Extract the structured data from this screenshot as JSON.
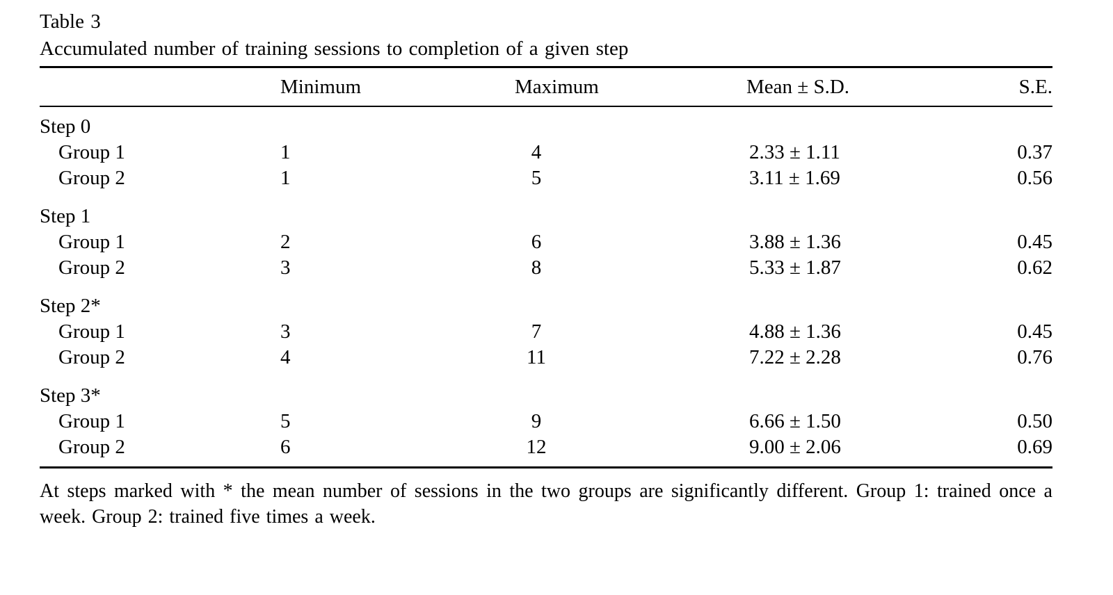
{
  "title": "Table 3",
  "caption": "Accumulated number of training sessions to completion of a given step",
  "columns": {
    "label": "",
    "minimum": "Minimum",
    "maximum": "Maximum",
    "mean_sd": "Mean ± S.D.",
    "se": "S.E."
  },
  "sections": [
    {
      "label": "Step 0",
      "rows": [
        {
          "label": "Group 1",
          "minimum": "1",
          "maximum": "4",
          "mean_sd": "2.33 ± 1.11",
          "se": "0.37"
        },
        {
          "label": "Group 2",
          "minimum": "1",
          "maximum": "5",
          "mean_sd": "3.11 ± 1.69",
          "se": "0.56"
        }
      ]
    },
    {
      "label": "Step 1",
      "rows": [
        {
          "label": "Group 1",
          "minimum": "2",
          "maximum": "6",
          "mean_sd": "3.88 ± 1.36",
          "se": "0.45"
        },
        {
          "label": "Group 2",
          "minimum": "3",
          "maximum": "8",
          "mean_sd": "5.33 ± 1.87",
          "se": "0.62"
        }
      ]
    },
    {
      "label": "Step 2*",
      "rows": [
        {
          "label": "Group 1",
          "minimum": "3",
          "maximum": "7",
          "mean_sd": "4.88 ± 1.36",
          "se": "0.45"
        },
        {
          "label": "Group 2",
          "minimum": "4",
          "maximum": "11",
          "mean_sd": "7.22 ± 2.28",
          "se": "0.76"
        }
      ]
    },
    {
      "label": "Step 3*",
      "rows": [
        {
          "label": "Group 1",
          "minimum": "5",
          "maximum": "9",
          "mean_sd": "6.66 ± 1.50",
          "se": "0.50"
        },
        {
          "label": "Group 2",
          "minimum": "6",
          "maximum": "12",
          "mean_sd": "9.00 ± 2.06",
          "se": "0.69"
        }
      ]
    }
  ],
  "footnote": "At steps marked with * the mean number of sessions in the two groups are significantly different. Group 1: trained once a week. Group 2: trained five times a week."
}
